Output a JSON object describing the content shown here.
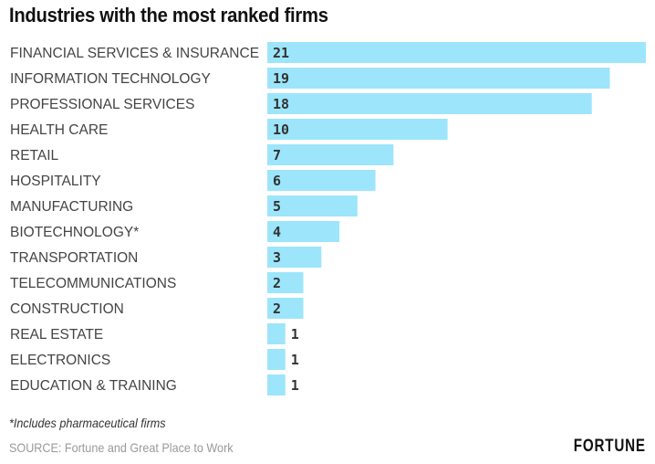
{
  "chart_data": {
    "type": "bar",
    "orientation": "horizontal",
    "title": "Industries with the most ranked firms",
    "xlabel": "",
    "ylabel": "",
    "categories": [
      "FINANCIAL SERVICES & INSURANCE",
      "INFORMATION TECHNOLOGY",
      "PROFESSIONAL SERVICES",
      "HEALTH CARE",
      "RETAIL",
      "HOSPITALITY",
      "MANUFACTURING",
      "BIOTECHNOLOGY*",
      "TRANSPORTATION",
      "TELECOMMUNICATIONS",
      "CONSTRUCTION",
      "REAL ESTATE",
      "ELECTRONICS",
      "EDUCATION & TRAINING"
    ],
    "values": [
      21,
      19,
      18,
      10,
      7,
      6,
      5,
      4,
      3,
      2,
      2,
      1,
      1,
      1
    ],
    "xlim": [
      0,
      21
    ],
    "grid": false,
    "data_labels": true,
    "bar_color": "#9de5fb",
    "footnote": "*Includes pharmaceutical firms",
    "source": "SOURCE: Fortune and Great Place to Work"
  },
  "brand": "FORTUNE"
}
